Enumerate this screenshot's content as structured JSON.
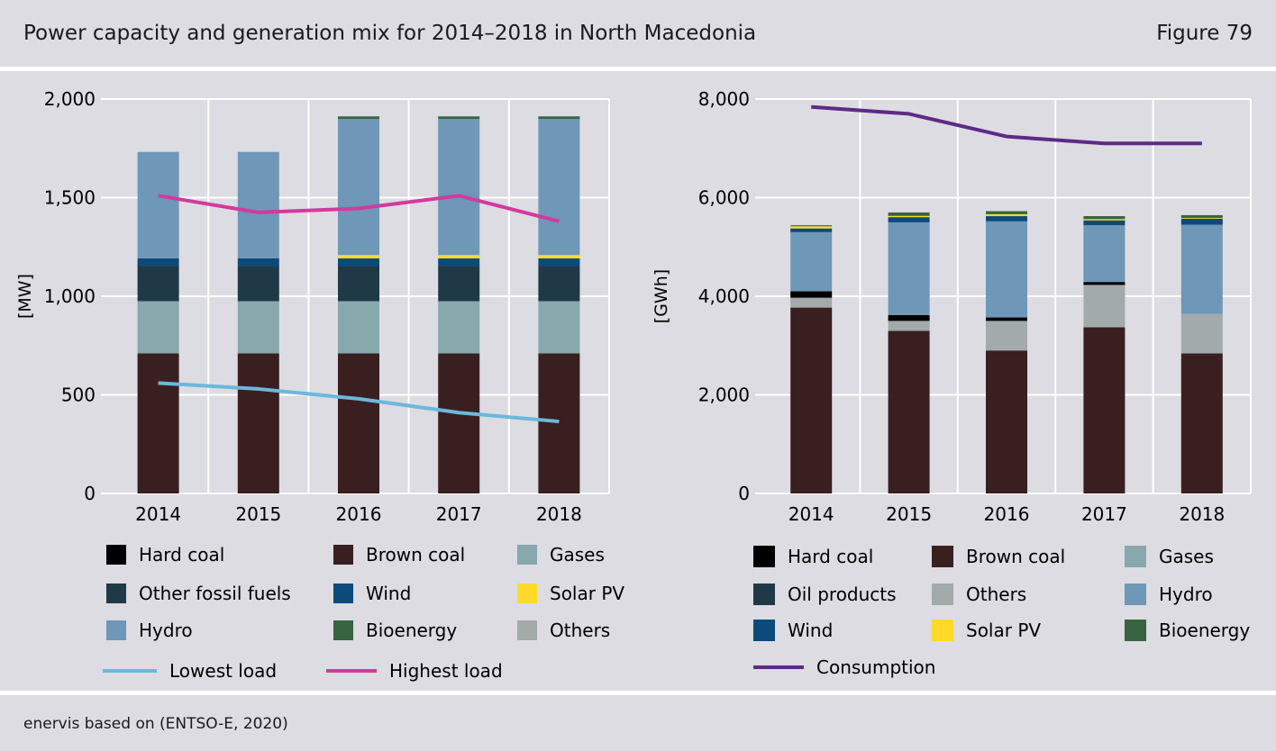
{
  "header": {
    "title": "Power capacity and generation mix for 2014–2018 in North Macedonia",
    "figure": "Figure 79"
  },
  "footer": {
    "source": "enervis based on (ENTSO-E, 2020)"
  },
  "colors": {
    "Hard coal": "#000000",
    "Brown coal": "#3a1f20",
    "Gases": "#87a8ad",
    "Other fossil fuels": "#1f3a46",
    "Oil products": "#1f3a46",
    "Wind": "#0c4a7a",
    "Solar PV": "#ffd92a",
    "Hydro": "#6e97b8",
    "Bioenergy": "#386341",
    "Others": "#a3aaaa",
    "Lowest load": "#6cb8dc",
    "Highest load": "#d23a9e",
    "Consumption": "#5e2a86"
  },
  "chart_data": [
    {
      "type": "bar",
      "stacked": true,
      "ylabel": "[MW]",
      "ylim": [
        0,
        2000
      ],
      "yticks": [
        "0",
        "500",
        "1,000",
        "1,500",
        "2,000"
      ],
      "categories": [
        "2014",
        "2015",
        "2016",
        "2017",
        "2018"
      ],
      "grid": true,
      "series": [
        {
          "name": "Brown coal",
          "values": [
            710,
            710,
            710,
            710,
            710
          ]
        },
        {
          "name": "Gases",
          "values": [
            265,
            265,
            265,
            265,
            265
          ]
        },
        {
          "name": "Other fossil fuels",
          "values": [
            180,
            180,
            180,
            180,
            180
          ]
        },
        {
          "name": "Wind",
          "values": [
            37,
            37,
            37,
            37,
            37
          ]
        },
        {
          "name": "Solar PV",
          "values": [
            0,
            0,
            17,
            17,
            17
          ]
        },
        {
          "name": "Hydro",
          "values": [
            540,
            540,
            690,
            690,
            690
          ]
        },
        {
          "name": "Bioenergy",
          "values": [
            0,
            0,
            13,
            13,
            13
          ]
        }
      ],
      "lines": [
        {
          "name": "Lowest load",
          "values": [
            560,
            530,
            480,
            410,
            365
          ]
        },
        {
          "name": "Highest load",
          "values": [
            1510,
            1425,
            1445,
            1510,
            1380
          ]
        }
      ],
      "legend": [
        [
          "Hard coal",
          "Brown coal",
          "Gases"
        ],
        [
          "Other fossil fuels",
          "Wind",
          "Solar PV"
        ],
        [
          "Hydro",
          "Bioenergy",
          "Others"
        ]
      ],
      "line_legend": [
        "Lowest load",
        "Highest load"
      ]
    },
    {
      "type": "bar",
      "stacked": true,
      "ylabel": "[GWh]",
      "ylim": [
        0,
        8000
      ],
      "yticks": [
        "0",
        "2,000",
        "4,000",
        "6,000",
        "8,000"
      ],
      "categories": [
        "2014",
        "2015",
        "2016",
        "2017",
        "2018"
      ],
      "grid": true,
      "series": [
        {
          "name": "Brown coal",
          "values": [
            3770,
            3300,
            2900,
            3370,
            2840
          ]
        },
        {
          "name": "Gases",
          "values": [
            0,
            0,
            0,
            0,
            0
          ]
        },
        {
          "name": "Others",
          "values": [
            200,
            200,
            600,
            860,
            800
          ]
        },
        {
          "name": "Hard coal",
          "values": [
            130,
            120,
            70,
            60,
            0
          ]
        },
        {
          "name": "Hydro",
          "values": [
            1200,
            1880,
            1950,
            1150,
            1810
          ]
        },
        {
          "name": "Wind",
          "values": [
            75,
            105,
            105,
            100,
            125
          ]
        },
        {
          "name": "Solar PV",
          "values": [
            45,
            25,
            40,
            25,
            15
          ]
        },
        {
          "name": "Bioenergy",
          "values": [
            20,
            70,
            60,
            60,
            55
          ]
        }
      ],
      "lines": [
        {
          "name": "Consumption",
          "values": [
            7840,
            7700,
            7240,
            7100,
            7100
          ]
        }
      ],
      "legend": [
        [
          "Hard coal",
          "Brown coal",
          "Gases"
        ],
        [
          "Oil products",
          "Others",
          "Hydro"
        ],
        [
          "Wind",
          "Solar PV",
          "Bioenergy"
        ]
      ],
      "line_legend": [
        "Consumption"
      ]
    }
  ]
}
